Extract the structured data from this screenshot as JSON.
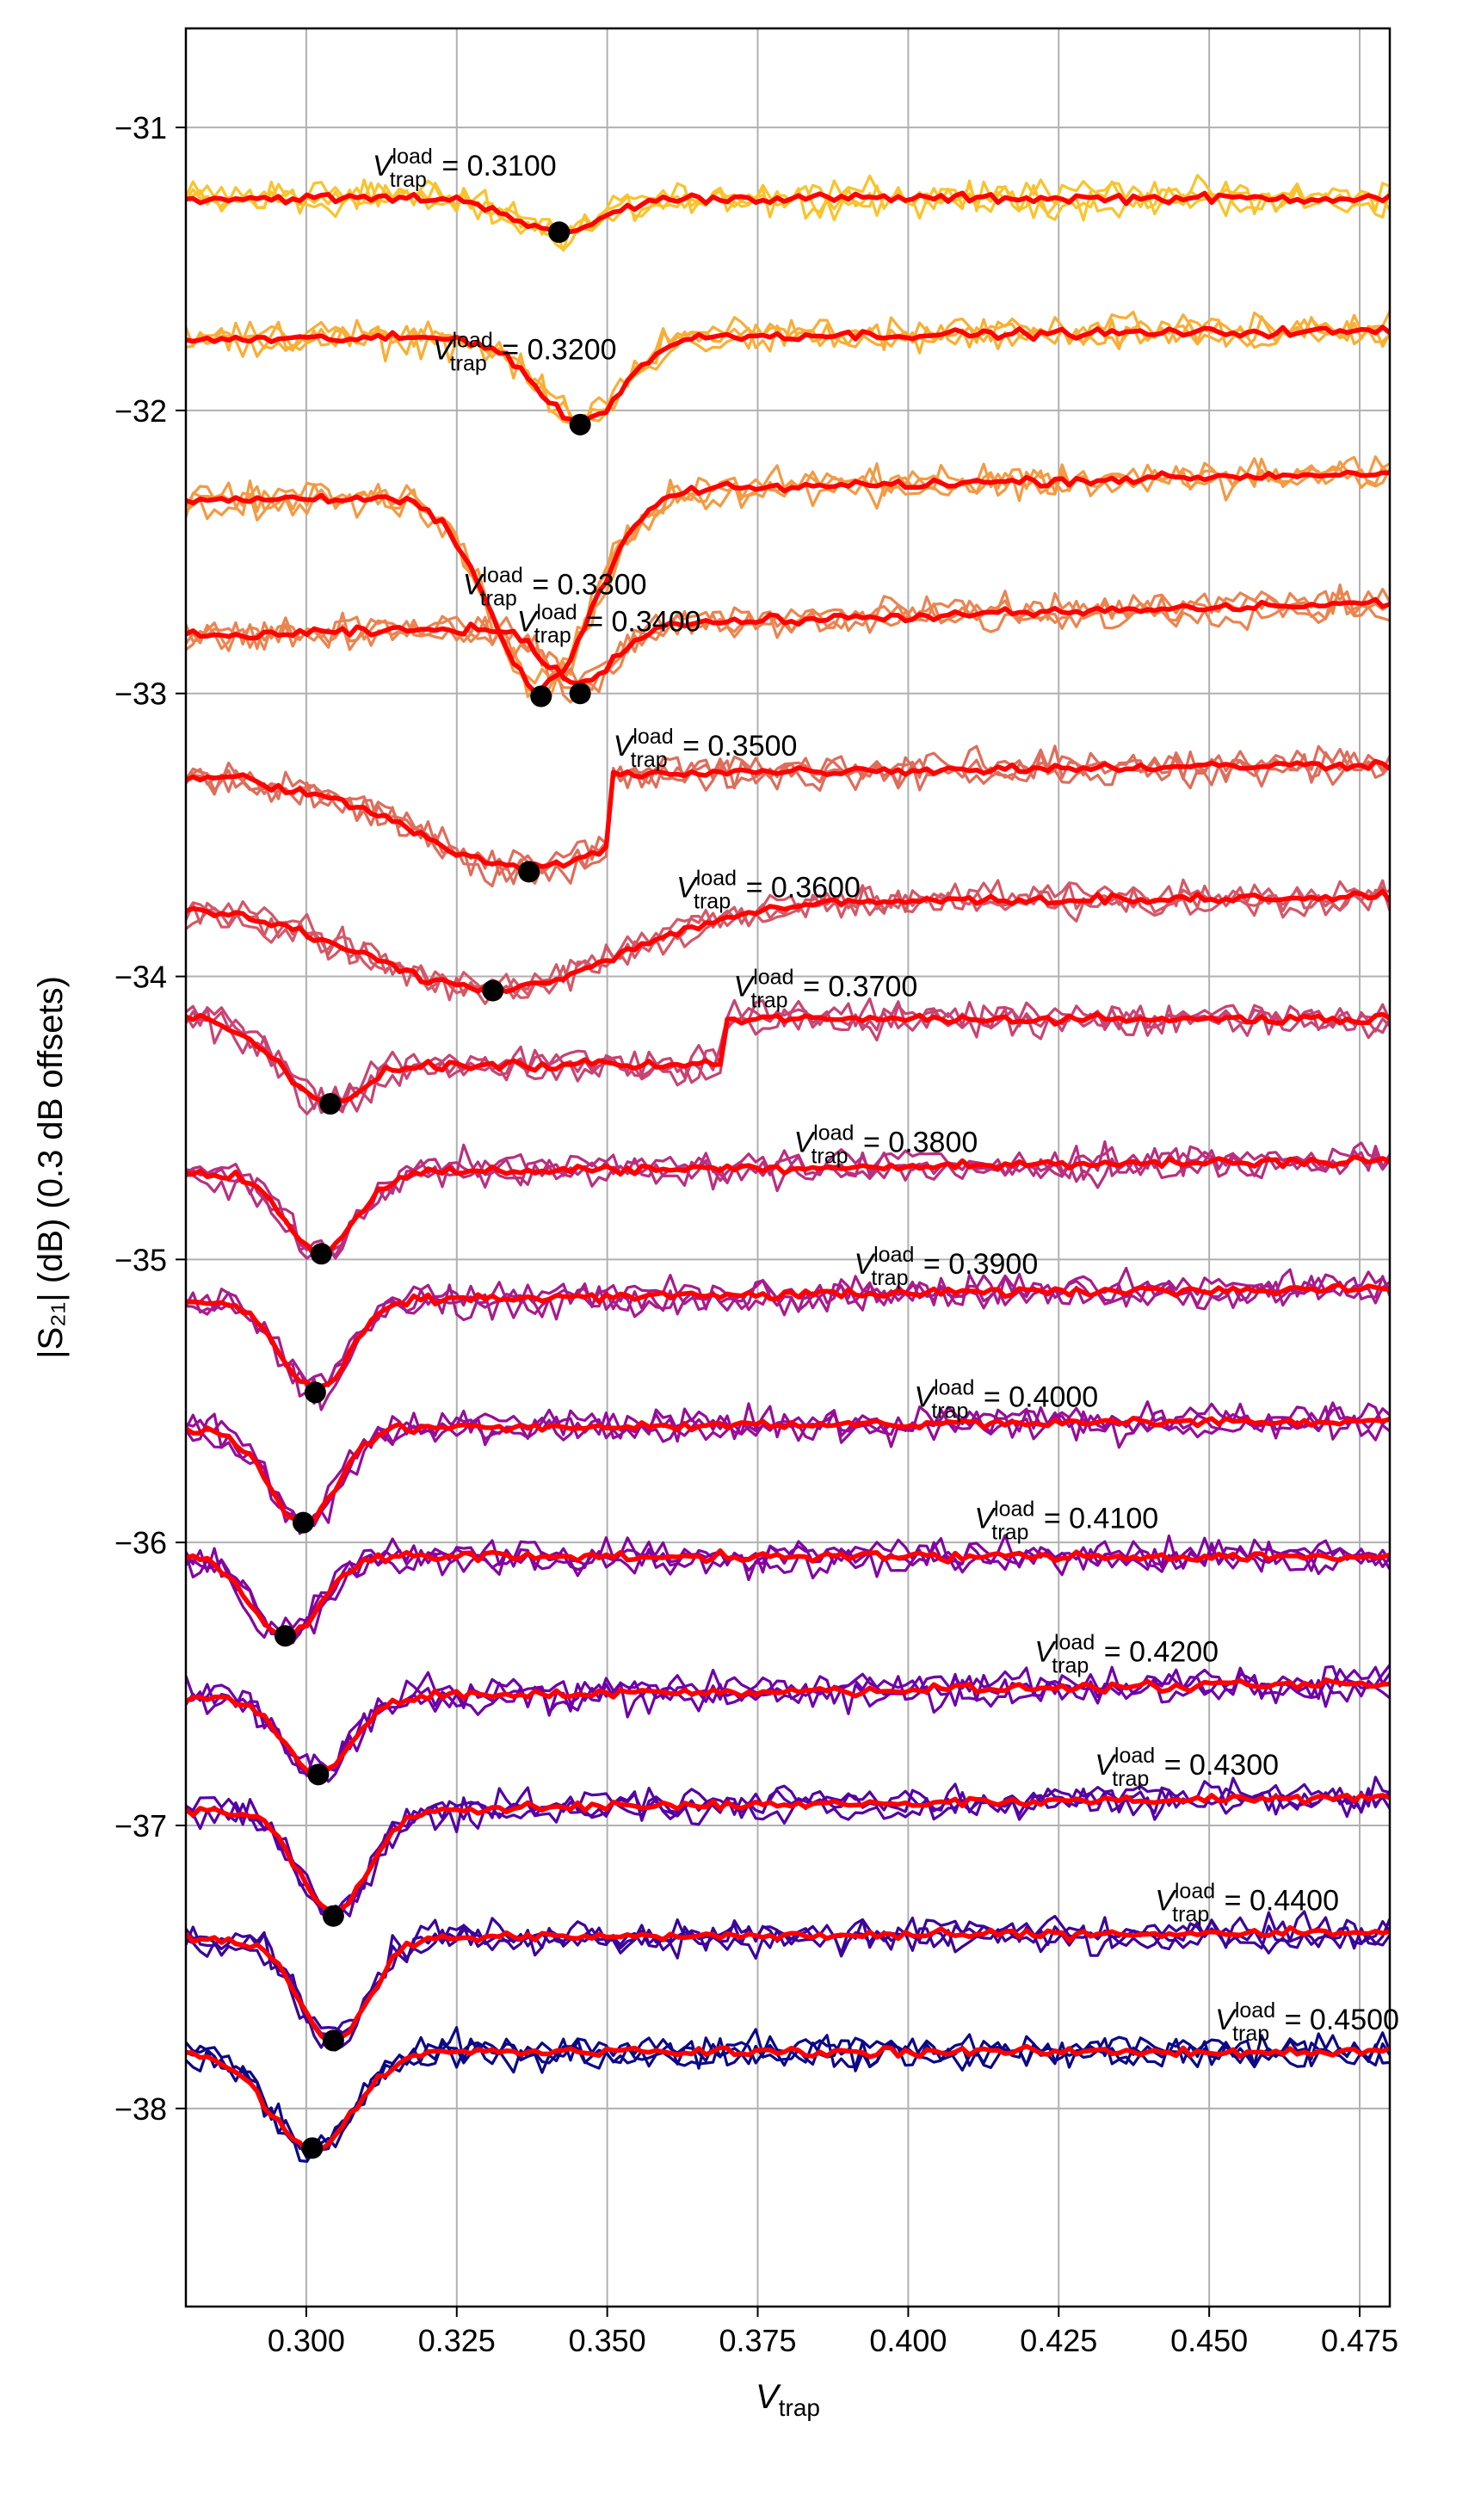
{
  "chart_data": {
    "type": "line",
    "title": "",
    "xlabel": "V",
    "xlabel_sub": "trap",
    "ylabel": "|S₂₁| (dB) (0.3 dB offsets)",
    "xlim": [
      0.28,
      0.48
    ],
    "ylim": [
      -38.7,
      -30.65
    ],
    "x_ticks": [
      0.3,
      0.325,
      0.35,
      0.375,
      0.4,
      0.425,
      0.45,
      0.475
    ],
    "x_tick_labels": [
      "0.300",
      "0.325",
      "0.350",
      "0.375",
      "0.400",
      "0.425",
      "0.450",
      "0.475"
    ],
    "y_ticks": [
      -31,
      -32,
      -33,
      -34,
      -35,
      -36,
      -37,
      -38
    ],
    "y_tick_labels": [
      "−31",
      "−32",
      "−33",
      "−34",
      "−35",
      "−36",
      "−37",
      "−38"
    ],
    "grid": true,
    "legend": "none",
    "avg_line_color": "#ff0000",
    "marker_color": "#000000",
    "annotation_prefix": "V",
    "annotation_sup": "load",
    "annotation_sub": "trap",
    "series": [
      {
        "label": "= 0.3100",
        "color": "#f9c32c",
        "baseline": -31.25,
        "end": -31.25,
        "dip_x": 0.342,
        "dip_y": -31.37,
        "dip_width": 0.01,
        "drop_x": null,
        "drop_y": null,
        "label_x": 0.311,
        "label_y": -31.17
      },
      {
        "label": "= 0.3200",
        "color": "#f8ae35",
        "baseline": -31.75,
        "end": -31.72,
        "dip_x": 0.3455,
        "dip_y": -32.05,
        "dip_width": 0.01,
        "drop_x": null,
        "drop_y": null,
        "label_x": 0.321,
        "label_y": -31.82
      },
      {
        "label": "= 0.3300",
        "color": "#f39a44",
        "baseline": -32.32,
        "end": -32.22,
        "dip_x": 0.339,
        "dip_y": -33.01,
        "dip_width": 0.012,
        "drop_x": null,
        "drop_y": null,
        "label_x": 0.326,
        "label_y": -32.65
      },
      {
        "label": "= 0.3400",
        "color": "#eb8450",
        "baseline": -32.8,
        "end": -32.68,
        "dip_x": 0.3455,
        "dip_y": -33.0,
        "dip_width": 0.008,
        "drop_x": null,
        "drop_y": null,
        "label_x": 0.335,
        "label_y": -32.78
      },
      {
        "label": "= 0.3500",
        "color": "#de6d5c",
        "baseline": -33.3,
        "end": -33.25,
        "dip_x": 0.337,
        "dip_y": -33.63,
        "dip_width": 0.03,
        "drop_x": 0.3505,
        "drop_y": -33.52,
        "label_x": 0.351,
        "label_y": -33.22
      },
      {
        "label": "= 0.3600",
        "color": "#d35868",
        "baseline": -33.75,
        "end": -33.72,
        "dip_x": 0.331,
        "dip_y": -34.05,
        "dip_width": 0.03,
        "drop_x": null,
        "drop_y": null,
        "label_x": 0.3615,
        "label_y": -33.72
      },
      {
        "label": "= 0.3700",
        "color": "#c74474",
        "baseline": -34.15,
        "end": -34.15,
        "dip_x": 0.304,
        "dip_y": -34.45,
        "dip_width": 0.012,
        "drop_x": 0.369,
        "drop_y": -34.3,
        "label_x": 0.371,
        "label_y": -34.07
      },
      {
        "label": "= 0.3800",
        "color": "#b8307f",
        "baseline": -34.7,
        "end": -34.65,
        "dip_x": 0.3025,
        "dip_y": -34.98,
        "dip_width": 0.008,
        "drop_x": null,
        "drop_y": null,
        "label_x": 0.381,
        "label_y": -34.62
      },
      {
        "label": "= 0.3900",
        "color": "#a71d8c",
        "baseline": -35.15,
        "end": -35.1,
        "dip_x": 0.3015,
        "dip_y": -35.47,
        "dip_width": 0.008,
        "drop_x": null,
        "drop_y": null,
        "label_x": 0.391,
        "label_y": -35.05
      },
      {
        "label": "= 0.4000",
        "color": "#960e98",
        "baseline": -35.6,
        "end": -35.57,
        "dip_x": 0.2995,
        "dip_y": -35.93,
        "dip_width": 0.008,
        "drop_x": null,
        "drop_y": null,
        "label_x": 0.401,
        "label_y": -35.52
      },
      {
        "label": "= 0.4100",
        "color": "#8305a0",
        "baseline": -36.05,
        "end": -36.05,
        "dip_x": 0.2965,
        "dip_y": -36.33,
        "dip_width": 0.008,
        "drop_x": null,
        "drop_y": null,
        "label_x": 0.411,
        "label_y": -35.95
      },
      {
        "label": "= 0.4200",
        "color": "#6e00a8",
        "baseline": -36.55,
        "end": -36.5,
        "dip_x": 0.302,
        "dip_y": -36.82,
        "dip_width": 0.008,
        "drop_x": null,
        "drop_y": null,
        "label_x": 0.421,
        "label_y": -36.42
      },
      {
        "label": "= 0.4300",
        "color": "#5401a4",
        "baseline": -36.95,
        "end": -36.9,
        "dip_x": 0.3045,
        "dip_y": -37.32,
        "dip_width": 0.008,
        "drop_x": null,
        "drop_y": null,
        "label_x": 0.431,
        "label_y": -36.82
      },
      {
        "label": "= 0.4400",
        "color": "#3b049a",
        "baseline": -37.4,
        "end": -37.38,
        "dip_x": 0.3045,
        "dip_y": -37.76,
        "dip_width": 0.008,
        "drop_x": null,
        "drop_y": null,
        "label_x": 0.441,
        "label_y": -37.3
      },
      {
        "label": "= 0.4500",
        "color": "#0d0887",
        "baseline": -37.8,
        "end": -37.8,
        "dip_x": 0.301,
        "dip_y": -38.14,
        "dip_width": 0.01,
        "drop_x": null,
        "drop_y": null,
        "label_x": 0.451,
        "label_y": -37.72
      }
    ]
  }
}
